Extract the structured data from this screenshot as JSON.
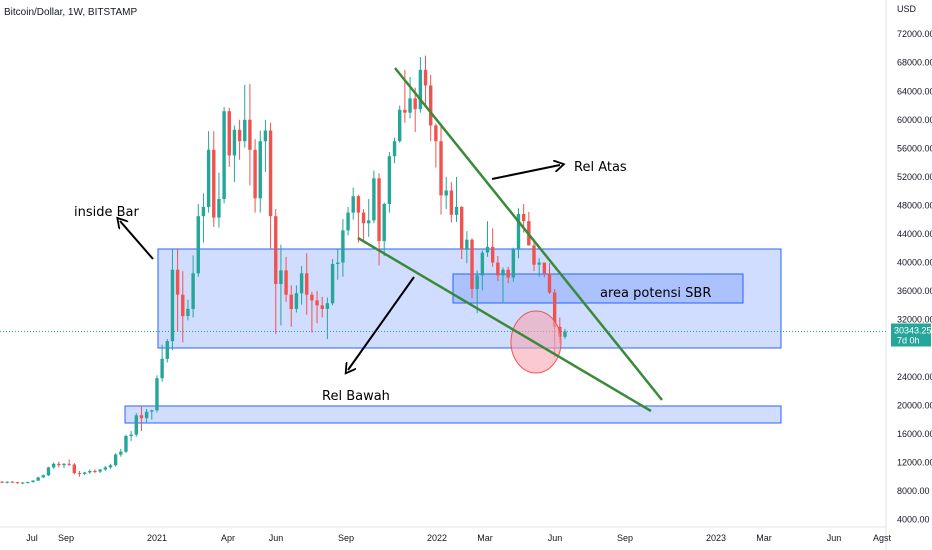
{
  "header": {
    "title": "Bitcoin/Dollar, 1W, BITSTAMP",
    "price_unit": "USD"
  },
  "chart_data": {
    "type": "candlestick",
    "title": "Bitcoin/Dollar, 1W, BITSTAMP",
    "ylabel": "USD",
    "ylim": [
      3500,
      74500
    ],
    "y_ticks": [
      4000,
      8000,
      12000,
      16000,
      20000,
      24000,
      28000,
      32000,
      36000,
      40000,
      44000,
      48000,
      52000,
      56000,
      60000,
      64000,
      68000,
      72000
    ],
    "y_tick_labels": [
      "4000.00",
      "8000.00",
      "12000.00",
      "16000.00",
      "20000.00",
      "24000.00",
      "",
      "32000.00",
      "36000.00",
      "40000.00",
      "44000.00",
      "48000.00",
      "52000.00",
      "56000.00",
      "60000.00",
      "64000.00",
      "68000.00",
      "72000.00"
    ],
    "x_tick_labels": [
      "Jul",
      "Sep",
      "2021",
      "Apr",
      "Jun",
      "Sep",
      "2022",
      "Mar",
      "Jun",
      "Sep",
      "2023",
      "Mar",
      "Jun",
      "Agst"
    ],
    "current_price": 30343.25,
    "current_price_label": "30343.25",
    "countdown_label": "7d 0h",
    "colors": {
      "up": "#26a69a",
      "down": "#ef5350",
      "trend": "#3a8a3a",
      "zone": "#2962ff",
      "circle": "#f7a6b0",
      "price_line": "#26a69a",
      "price_tag": "#26a69a"
    },
    "candles": [
      [
        9300,
        9400,
        9100,
        9200
      ],
      [
        9200,
        9350,
        9050,
        9280
      ],
      [
        9280,
        9400,
        9150,
        9220
      ],
      [
        9220,
        9300,
        9000,
        9100
      ],
      [
        9100,
        9250,
        8950,
        9180
      ],
      [
        9180,
        9300,
        9050,
        9250
      ],
      [
        9250,
        9500,
        9150,
        9450
      ],
      [
        9450,
        10000,
        9400,
        9900
      ],
      [
        9900,
        10300,
        9800,
        10200
      ],
      [
        10200,
        11400,
        10100,
        11300
      ],
      [
        11300,
        12000,
        11100,
        11800
      ],
      [
        11800,
        12100,
        11300,
        11600
      ],
      [
        11600,
        11900,
        11200,
        11800
      ],
      [
        11800,
        12400,
        11500,
        11700
      ],
      [
        11700,
        11900,
        10300,
        10500
      ],
      [
        10500,
        10800,
        10000,
        10400
      ],
      [
        10400,
        10700,
        10200,
        10600
      ],
      [
        10600,
        11000,
        10400,
        10800
      ],
      [
        10800,
        11000,
        10500,
        10700
      ],
      [
        10700,
        11100,
        10500,
        11000
      ],
      [
        11000,
        11500,
        10800,
        11300
      ],
      [
        11300,
        11800,
        11100,
        11600
      ],
      [
        11600,
        13300,
        11400,
        13100
      ],
      [
        13100,
        13900,
        12800,
        13500
      ],
      [
        13500,
        15900,
        13300,
        15700
      ],
      [
        15700,
        16400,
        15000,
        15900
      ],
      [
        15900,
        18900,
        15600,
        18600
      ],
      [
        18600,
        19800,
        16400,
        18200
      ],
      [
        18200,
        19500,
        17600,
        19100
      ],
      [
        19100,
        19400,
        18000,
        19300
      ],
      [
        19300,
        24200,
        19000,
        23800
      ],
      [
        23800,
        28500,
        23300,
        26500
      ],
      [
        26500,
        29300,
        26000,
        29000
      ],
      [
        29000,
        41900,
        27700,
        39000
      ],
      [
        39000,
        42000,
        30300,
        35500
      ],
      [
        35500,
        38800,
        28800,
        32500
      ],
      [
        32500,
        34800,
        31900,
        33500
      ],
      [
        33500,
        41000,
        32300,
        38500
      ],
      [
        38500,
        48200,
        38000,
        46500
      ],
      [
        46500,
        49700,
        42800,
        47800
      ],
      [
        47800,
        58400,
        47000,
        55800
      ],
      [
        55800,
        58400,
        45000,
        46300
      ],
      [
        46300,
        52600,
        44900,
        48900
      ],
      [
        48900,
        61800,
        48300,
        61200
      ],
      [
        61200,
        61700,
        53400,
        55000
      ],
      [
        55000,
        59200,
        51300,
        58600
      ],
      [
        58600,
        60000,
        54400,
        57000
      ],
      [
        57000,
        64900,
        56100,
        60000
      ],
      [
        60000,
        65000,
        50800,
        55800
      ],
      [
        55800,
        57300,
        47000,
        49000
      ],
      [
        49000,
        58500,
        47000,
        57000
      ],
      [
        57000,
        60000,
        52700,
        58500
      ],
      [
        58500,
        59600,
        42000,
        46500
      ],
      [
        46500,
        47500,
        30000,
        37000
      ],
      [
        37000,
        42500,
        31200,
        38900
      ],
      [
        38900,
        40800,
        34500,
        35500
      ],
      [
        35500,
        36800,
        31000,
        33500
      ],
      [
        33500,
        36800,
        33000,
        35700
      ],
      [
        35700,
        39500,
        34100,
        38500
      ],
      [
        38500,
        41300,
        32700,
        35500
      ],
      [
        35500,
        35900,
        30200,
        34700
      ],
      [
        34700,
        36000,
        31500,
        34000
      ],
      [
        34000,
        35200,
        32300,
        33500
      ],
      [
        33500,
        35100,
        29300,
        34300
      ],
      [
        34300,
        40500,
        34000,
        39800
      ],
      [
        39800,
        42000,
        37600,
        40000
      ],
      [
        40000,
        46100,
        38000,
        44500
      ],
      [
        44500,
        47800,
        43800,
        47000
      ],
      [
        47000,
        50500,
        46000,
        49300
      ],
      [
        49300,
        49500,
        42800,
        47000
      ],
      [
        47000,
        47500,
        42800,
        45500
      ],
      [
        45500,
        48900,
        43600,
        45900
      ],
      [
        45900,
        52900,
        45500,
        51800
      ],
      [
        51800,
        52500,
        39600,
        43000
      ],
      [
        43000,
        48400,
        40900,
        48200
      ],
      [
        48200,
        55500,
        47000,
        54900
      ],
      [
        54900,
        57500,
        53900,
        57000
      ],
      [
        57000,
        62000,
        56800,
        61400
      ],
      [
        61400,
        67000,
        59600,
        61000
      ],
      [
        61000,
        66000,
        60200,
        63000
      ],
      [
        63000,
        64500,
        58300,
        61500
      ],
      [
        61500,
        68800,
        61000,
        67000
      ],
      [
        67000,
        69000,
        61700,
        64800
      ],
      [
        64800,
        66300,
        57000,
        59200
      ],
      [
        59200,
        59500,
        53300,
        57000
      ],
      [
        57000,
        59200,
        46700,
        49400
      ],
      [
        49400,
        52000,
        47500,
        50100
      ],
      [
        50100,
        51300,
        45600,
        46700
      ],
      [
        46700,
        52000,
        45700,
        47800
      ],
      [
        47800,
        47900,
        40500,
        41800
      ],
      [
        41800,
        44400,
        39900,
        43200
      ],
      [
        43200,
        43400,
        35000,
        36300
      ],
      [
        36300,
        38900,
        32900,
        38200
      ],
      [
        38200,
        41700,
        36100,
        41400
      ],
      [
        41400,
        45800,
        40800,
        42200
      ],
      [
        42200,
        44800,
        39400,
        40000
      ],
      [
        40000,
        40900,
        37400,
        38200
      ],
      [
        38200,
        39300,
        34300,
        39000
      ],
      [
        39000,
        39400,
        37100,
        37900
      ],
      [
        37900,
        42100,
        37300,
        41800
      ],
      [
        41800,
        47600,
        40600,
        46800
      ],
      [
        46800,
        48200,
        44200,
        45800
      ],
      [
        45800,
        47100,
        42800,
        42400
      ],
      [
        42400,
        42900,
        38800,
        39700
      ],
      [
        39700,
        40600,
        38000,
        40000
      ],
      [
        40000,
        40000,
        37900,
        38500
      ],
      [
        38500,
        39900,
        35600,
        35800
      ],
      [
        35800,
        36300,
        26700,
        31000
      ],
      [
        31000,
        32300,
        28700,
        29600
      ],
      [
        29600,
        30700,
        29300,
        30343.25
      ]
    ]
  },
  "annotations": {
    "inside_bar": "inside Bar",
    "rel_atas": "Rel Atas",
    "rel_bawah": "Rel Bawah",
    "area_sbr": "area potensi SBR"
  }
}
